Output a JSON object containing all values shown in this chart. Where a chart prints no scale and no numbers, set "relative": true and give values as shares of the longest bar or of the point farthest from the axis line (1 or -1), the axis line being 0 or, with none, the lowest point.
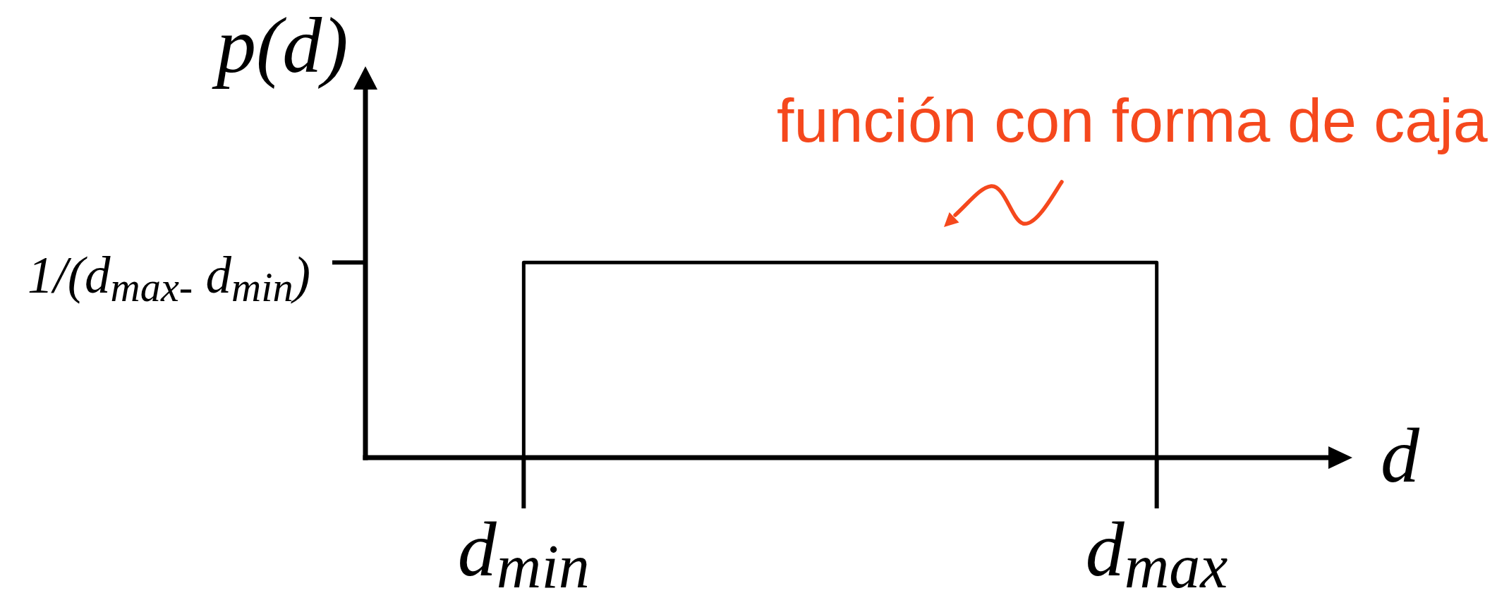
{
  "chart_data": {
    "type": "step",
    "ylabel": "p(d)",
    "xlabel": "d",
    "relative": true,
    "categories": [
      null,
      "d$_{min}$",
      null,
      null,
      null,
      "d$_{max}$",
      null
    ],
    "color": "#000000",
    "values": [
      0,
      1,
      1,
      1,
      1,
      0,
      null
    ],
    "annotations": [
      "función con forma de caja",
      "1/(d$_{max-}$ d$_{min}$)"
    ]
  }
}
